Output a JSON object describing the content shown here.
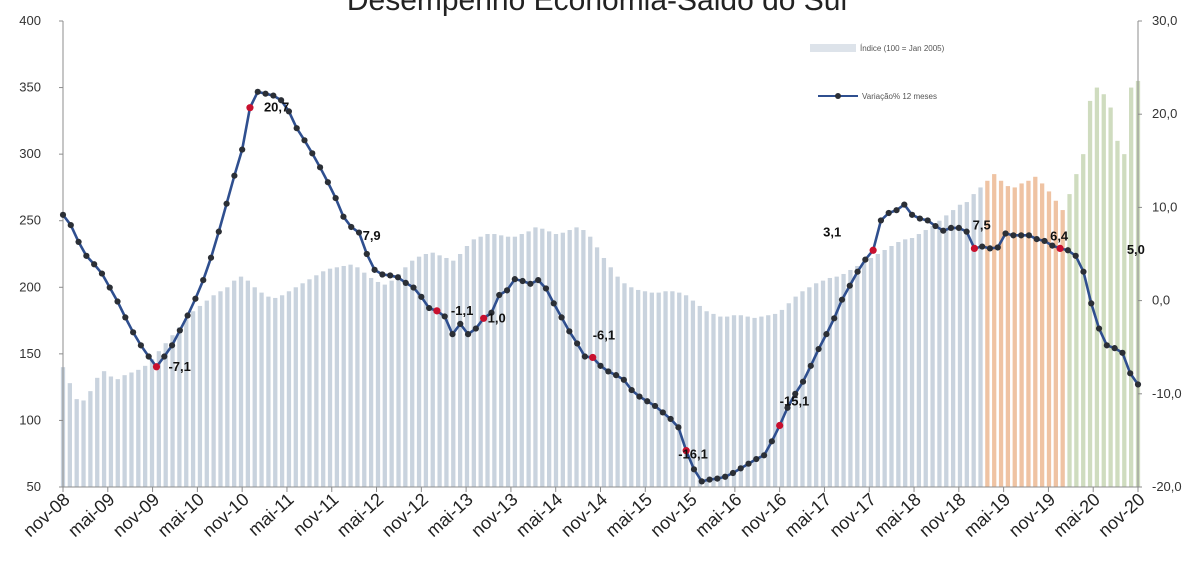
{
  "chart_data": {
    "type": "bar+line",
    "title": "Desempenho Economia-Saldo do Sul",
    "left_axis": {
      "min": 50,
      "max": 400,
      "ticks": [
        50,
        100,
        150,
        200,
        250,
        300,
        350,
        400
      ],
      "tick_labels": [
        "50",
        "100",
        "150",
        "200",
        "250",
        "300",
        "350",
        "400"
      ]
    },
    "right_axis": {
      "min": -20,
      "max": 30,
      "ticks": [
        -20,
        -10,
        0,
        10,
        20,
        30
      ],
      "tick_labels": [
        "-20,0",
        "-10,0",
        "0,0",
        "10,0",
        "20,0",
        "30,0"
      ]
    },
    "x_tick_labels": [
      "nov-08",
      "mai-09",
      "nov-09",
      "mai-10",
      "nov-10",
      "mai-11",
      "nov-11",
      "mai-12",
      "nov-12",
      "mai-13",
      "nov-13",
      "mai-14",
      "nov-14",
      "mai-15",
      "nov-15",
      "mai-16",
      "nov-16",
      "mai-17",
      "nov-17",
      "mai-18",
      "nov-18",
      "mai-19",
      "nov-19",
      "mai-20",
      "nov-20"
    ],
    "series": [
      {
        "name": "Índice (100 = Jan 2005)",
        "axis": "left",
        "kind": "bar",
        "values": [
          140,
          128,
          116,
          115,
          122,
          132,
          137,
          133,
          131,
          134,
          136,
          138,
          141,
          146,
          152,
          158,
          164,
          170,
          176,
          182,
          186,
          190,
          194,
          197,
          200,
          205,
          208,
          205,
          200,
          196,
          193,
          192,
          194,
          197,
          200,
          203,
          206,
          209,
          212,
          214,
          215,
          216,
          217,
          215,
          211,
          207,
          204,
          202,
          205,
          210,
          215,
          220,
          223,
          225,
          226,
          224,
          222,
          220,
          225,
          231,
          236,
          238,
          240,
          240,
          239,
          238,
          238,
          240,
          242,
          245,
          244,
          242,
          240,
          241,
          243,
          245,
          243,
          238,
          230,
          222,
          215,
          208,
          203,
          200,
          198,
          197,
          196,
          196,
          197,
          197,
          196,
          194,
          190,
          186,
          182,
          180,
          178,
          178,
          179,
          179,
          178,
          177,
          178,
          179,
          180,
          183,
          188,
          193,
          197,
          200,
          203,
          205,
          207,
          208,
          210,
          213,
          216,
          219,
          222,
          225,
          228,
          231,
          234,
          236,
          237,
          240,
          243,
          246,
          250,
          254,
          258,
          262,
          264,
          270,
          275,
          280,
          285,
          280,
          276,
          275,
          278,
          280,
          283,
          278,
          272,
          265,
          258,
          270,
          285,
          300,
          340,
          350,
          345,
          335,
          310,
          300,
          350,
          355
        ]
      },
      {
        "name": "Variação% 12 meses",
        "axis": "right",
        "kind": "line",
        "values": [
          9.2,
          8.1,
          6.3,
          4.8,
          3.9,
          2.9,
          1.4,
          -0.1,
          -1.8,
          -3.4,
          -4.8,
          -6.0,
          -7.1,
          -6.0,
          -4.8,
          -3.2,
          -1.6,
          0.2,
          2.2,
          4.6,
          7.4,
          10.4,
          13.4,
          16.2,
          20.7,
          22.4,
          22.2,
          22.0,
          21.5,
          20.3,
          18.5,
          17.2,
          15.8,
          14.3,
          12.7,
          11.0,
          9.0,
          7.9,
          7.3,
          5.0,
          3.3,
          2.8,
          2.7,
          2.5,
          1.9,
          1.4,
          0.4,
          -0.8,
          -1.1,
          -1.7,
          -3.6,
          -2.5,
          -3.6,
          -3.0,
          -1.9,
          -1.3,
          0.6,
          1.1,
          2.3,
          2.1,
          1.8,
          2.2,
          1.3,
          -0.3,
          -1.8,
          -3.3,
          -4.6,
          -6.0,
          -6.1,
          -7.0,
          -7.6,
          -8.0,
          -8.5,
          -9.6,
          -10.3,
          -10.8,
          -11.3,
          -12.0,
          -12.7,
          -13.6,
          -16.1,
          -18.1,
          -19.4,
          -19.2,
          -19.1,
          -18.9,
          -18.5,
          -18.0,
          -17.5,
          -17.0,
          -16.6,
          -15.1,
          -13.4,
          -11.5,
          -10.0,
          -8.7,
          -7.0,
          -5.2,
          -3.6,
          -1.9,
          0.1,
          1.6,
          3.1,
          4.4,
          5.4,
          8.6,
          9.4,
          9.7,
          10.3,
          9.2,
          8.8,
          8.6,
          8.0,
          7.5,
          7.8,
          7.8,
          7.4,
          5.6,
          5.8,
          5.6,
          5.7,
          7.2,
          7.0,
          7.0,
          7.0,
          6.6,
          6.4,
          5.9,
          5.6,
          5.4,
          4.8,
          3.1,
          -0.3,
          -3.0,
          -4.8,
          -5.1,
          -5.6,
          -7.8,
          -9.0
        ]
      }
    ],
    "annotations": [
      "-7,1",
      "20,7",
      "7,9",
      "-1,1",
      "1,0",
      "-6,1",
      "-16,1",
      "-15,1",
      "3,1",
      "7,5",
      "6,4",
      "5,0"
    ],
    "legend_position": "top-right",
    "grid": false
  }
}
